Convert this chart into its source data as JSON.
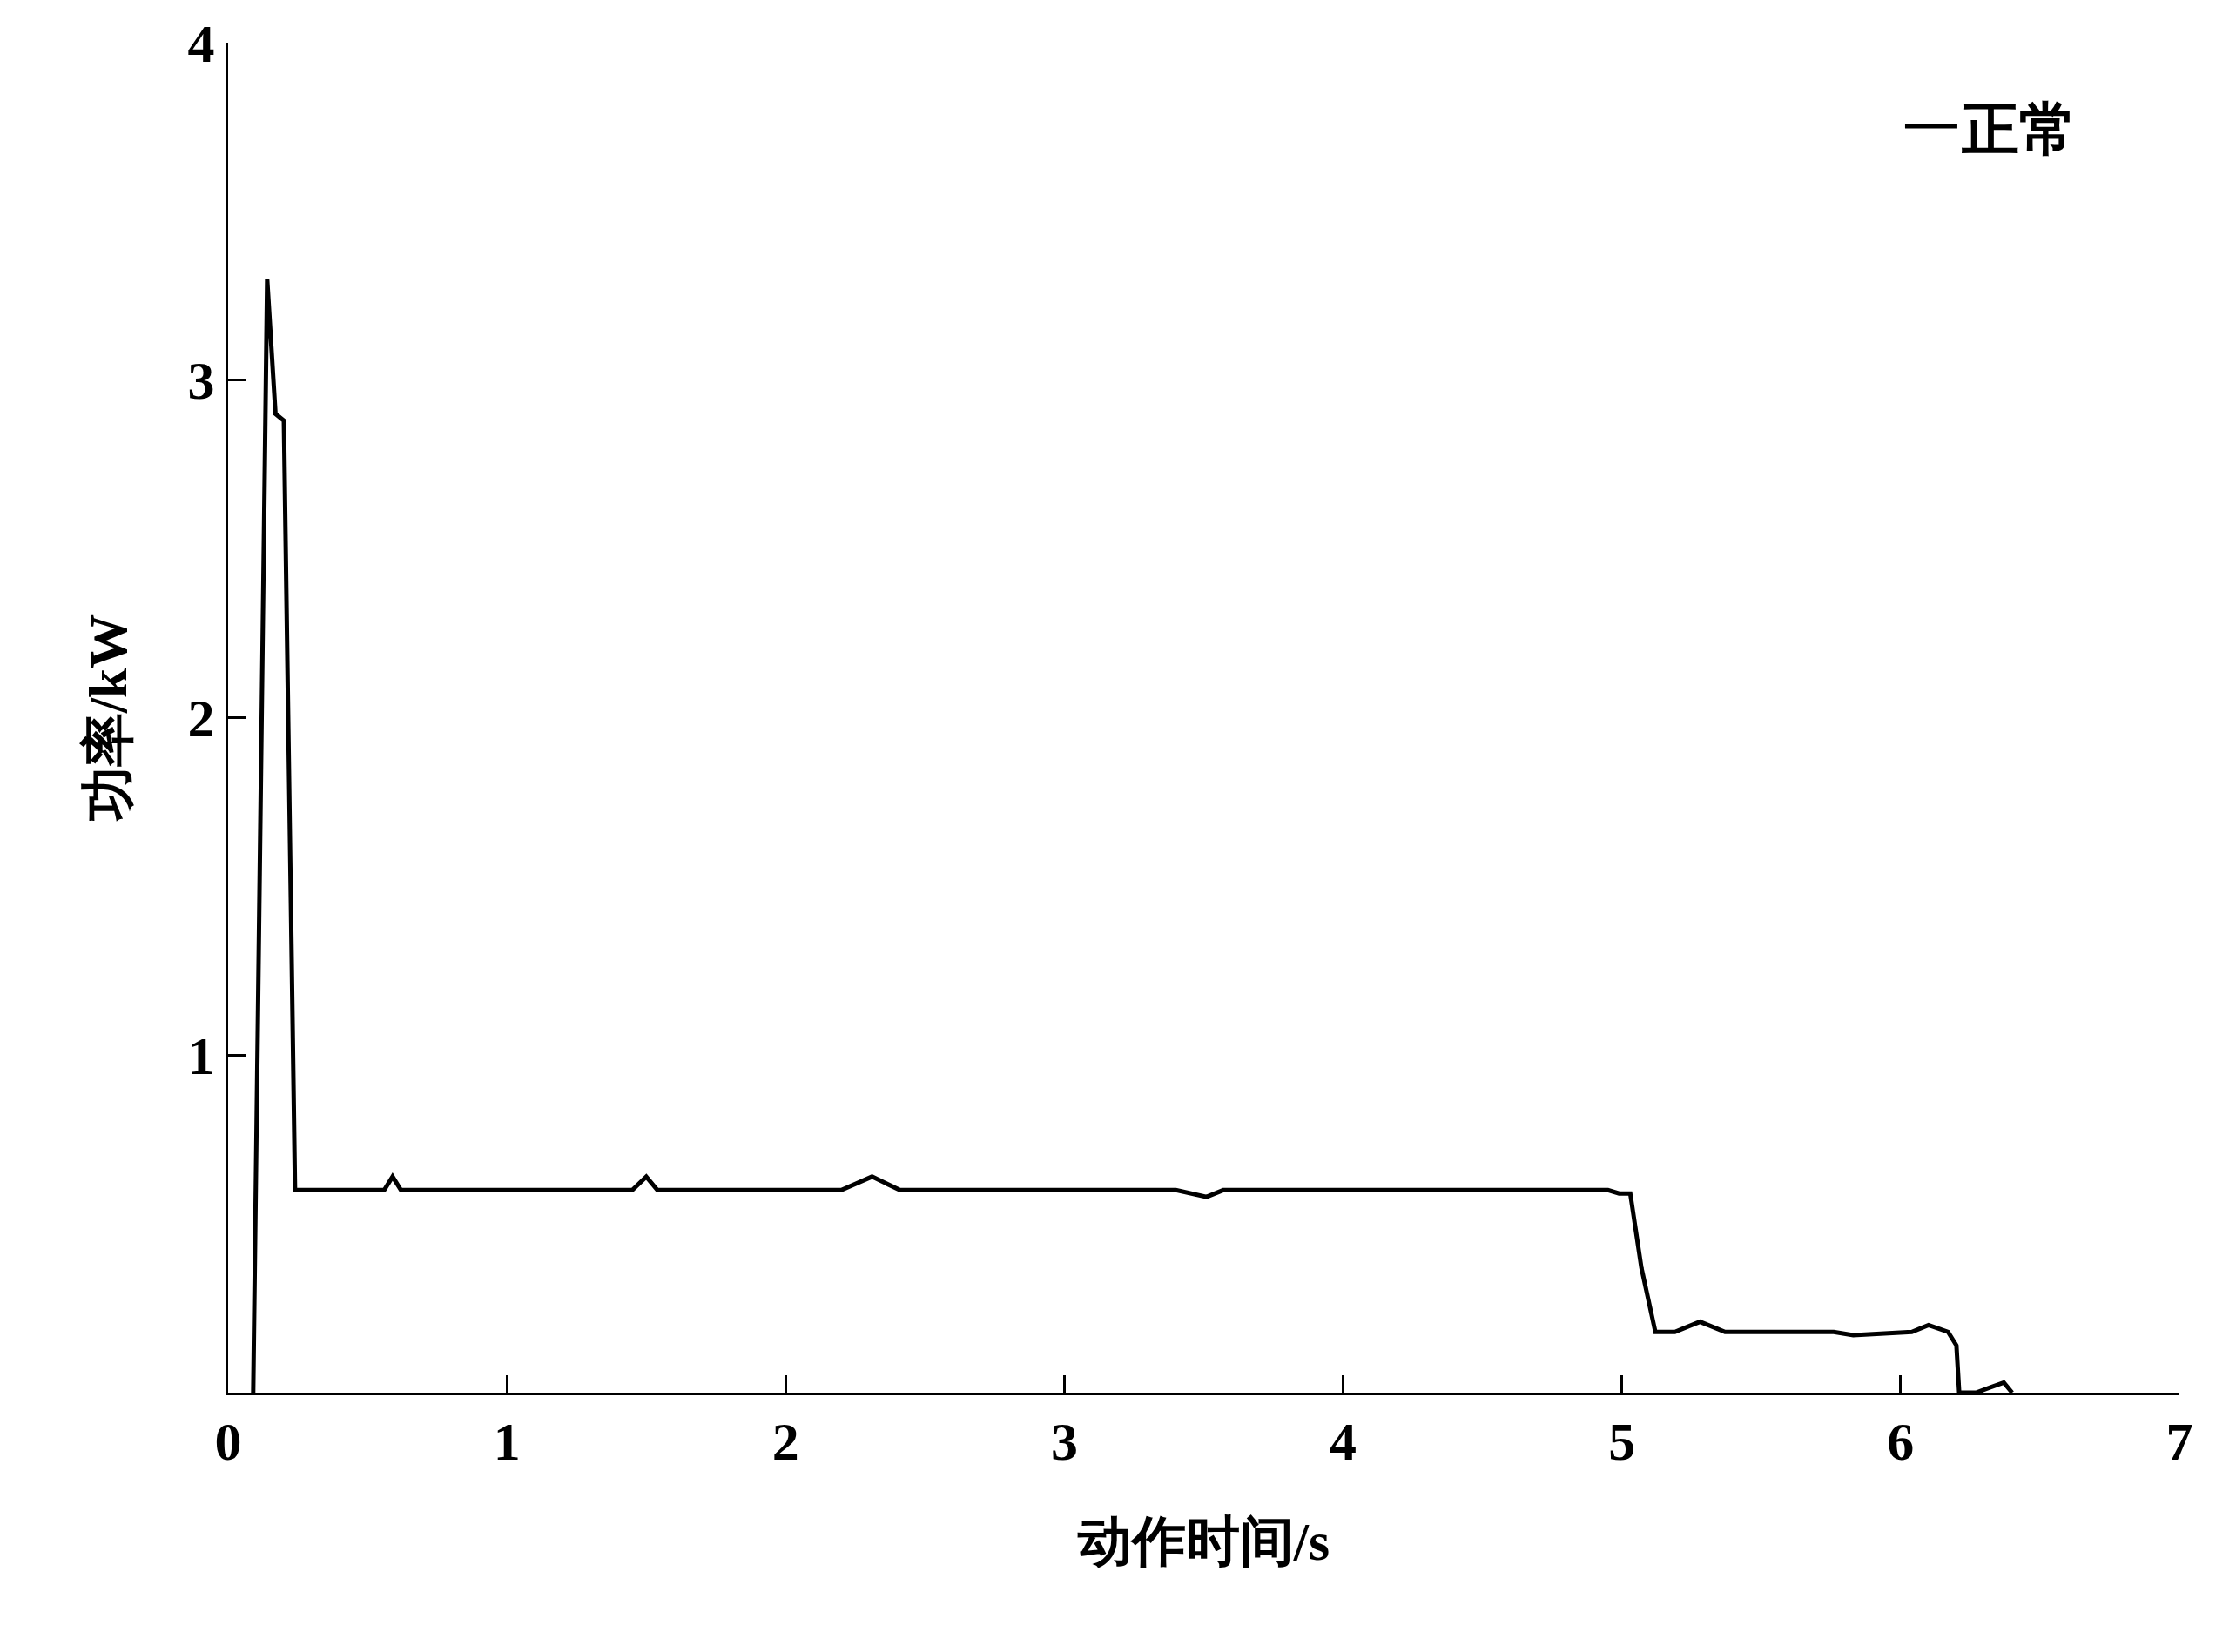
{
  "chart_data": {
    "type": "line",
    "xlabel": "动作时间/s",
    "ylabel": "功率/kW",
    "xlim": [
      0,
      7
    ],
    "ylim": [
      0,
      4
    ],
    "xticks": [
      0,
      1,
      2,
      3,
      4,
      5,
      6,
      7
    ],
    "yticks": [
      1,
      2,
      3,
      4
    ],
    "legend": "top right",
    "line_style": "solid",
    "marker": "none",
    "series": [
      {
        "name": "正常",
        "color": "#000000",
        "x": [
          0.09,
          0.14,
          0.17,
          0.2,
          0.24,
          0.56,
          0.59,
          0.62,
          1.45,
          1.5,
          1.54,
          2.2,
          2.31,
          2.41,
          3.4,
          3.51,
          3.57,
          4.95,
          4.99,
          5.03,
          5.07,
          5.12,
          5.19,
          5.28,
          5.37,
          5.76,
          5.83,
          6.04,
          6.1,
          6.17,
          6.2,
          6.21,
          6.27,
          6.37,
          6.4
        ],
        "values": [
          0,
          3.3,
          2.9,
          2.88,
          0.6,
          0.6,
          0.64,
          0.6,
          0.6,
          0.64,
          0.6,
          0.6,
          0.64,
          0.6,
          0.6,
          0.58,
          0.6,
          0.6,
          0.59,
          0.59,
          0.37,
          0.18,
          0.18,
          0.21,
          0.18,
          0.18,
          0.17,
          0.18,
          0.2,
          0.18,
          0.14,
          0,
          0,
          0.03,
          0
        ]
      }
    ]
  }
}
